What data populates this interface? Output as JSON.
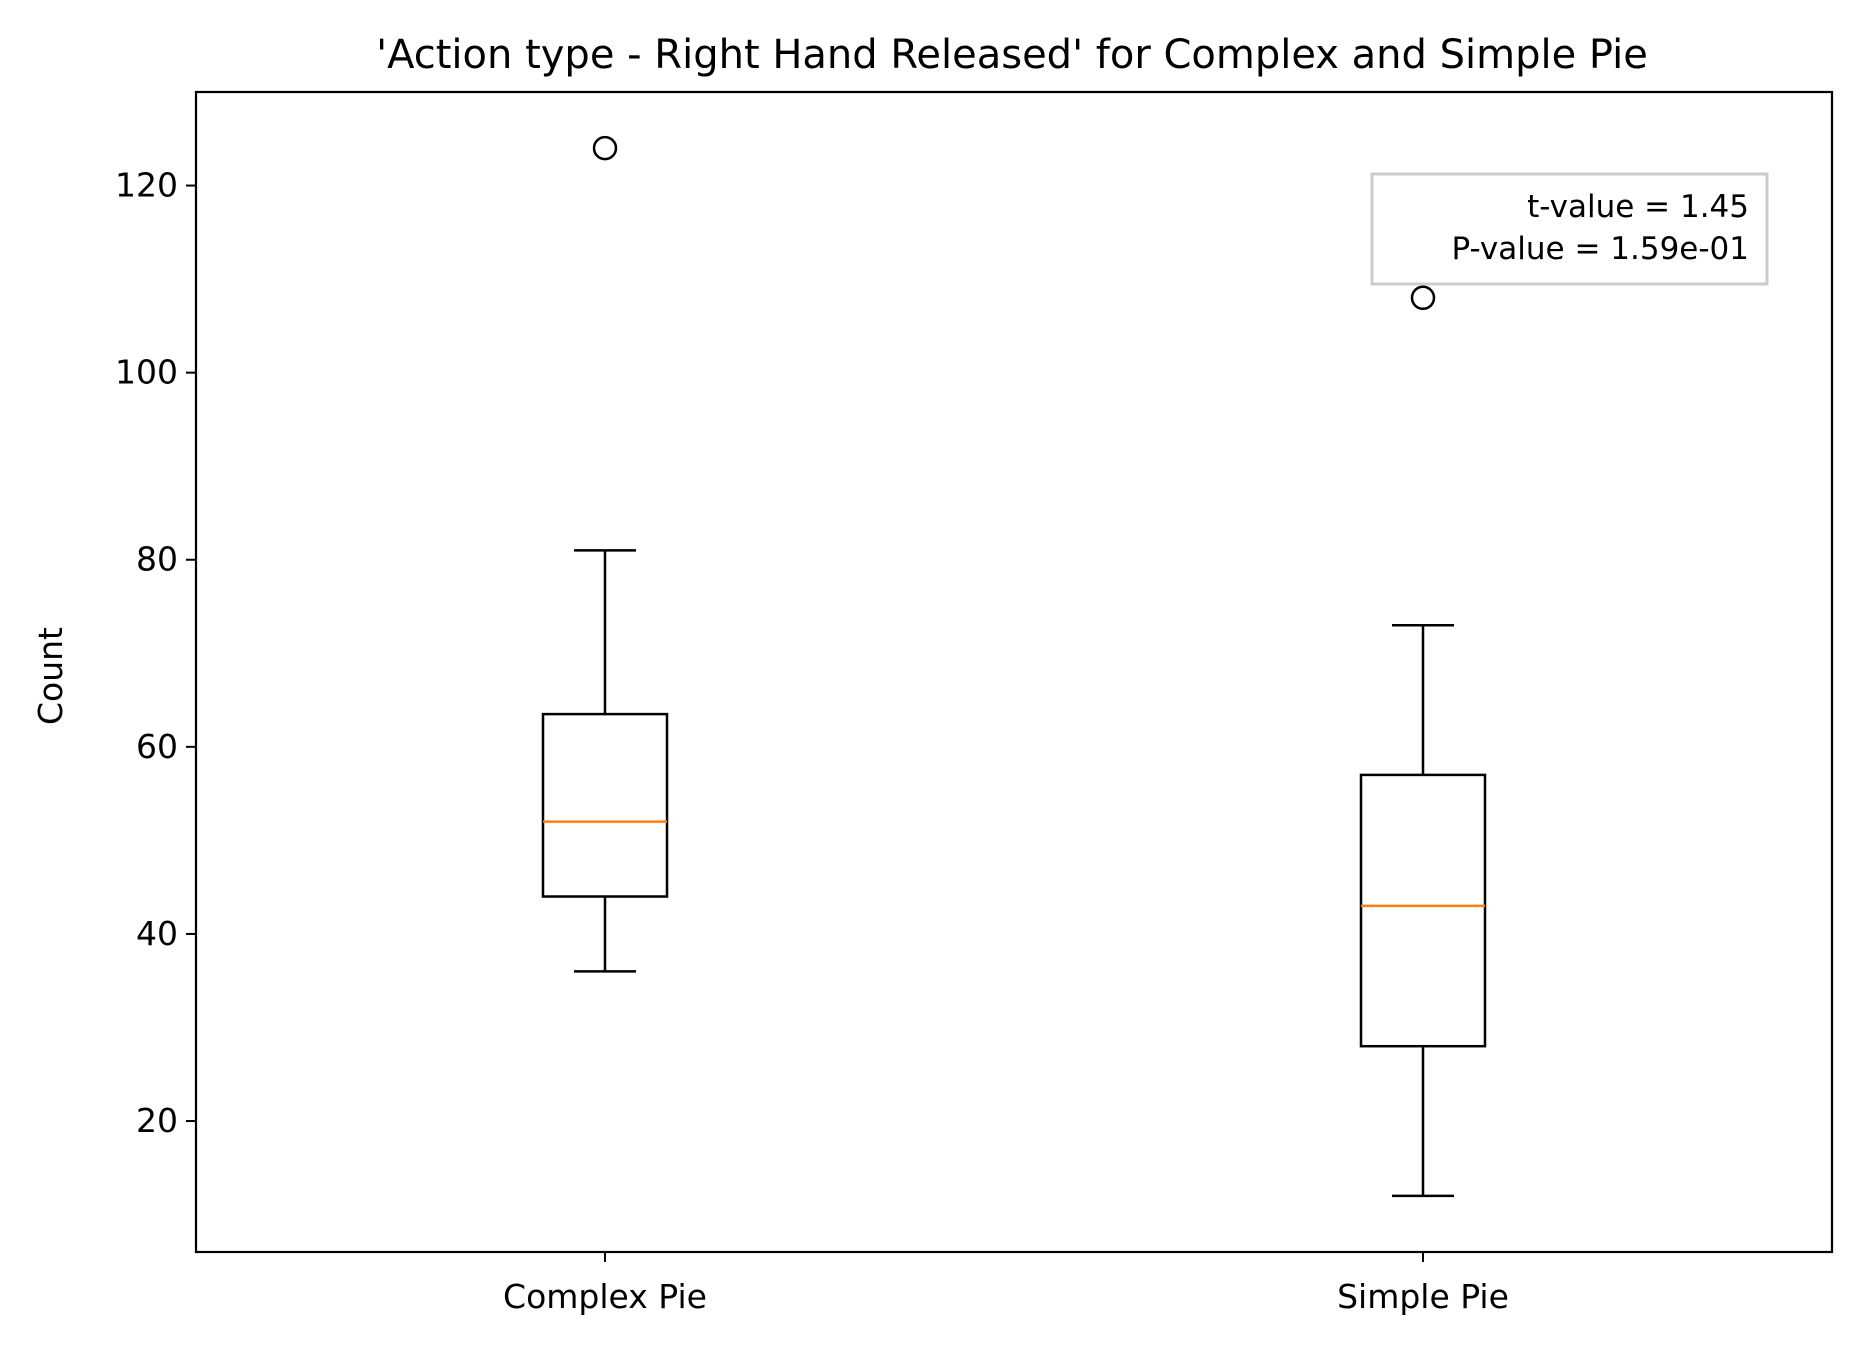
{
  "chart_data": {
    "type": "boxplot",
    "title": "'Action type - Right Hand Released' for Complex and Simple Pie",
    "xlabel": "",
    "ylabel": "Count",
    "ylim": [
      6,
      130
    ],
    "yticks": [
      20,
      40,
      60,
      80,
      100,
      120
    ],
    "grid": false,
    "categories": [
      "Complex Pie",
      "Simple Pie"
    ],
    "boxes": [
      {
        "category": "Complex Pie",
        "whisker_low": 36,
        "q1": 44,
        "median": 52,
        "q3": 63.5,
        "whisker_high": 81,
        "outliers": [
          124
        ]
      },
      {
        "category": "Simple Pie",
        "whisker_low": 12,
        "q1": 28,
        "median": 43,
        "q3": 57,
        "whisker_high": 73,
        "outliers": [
          108
        ]
      }
    ],
    "annotation": {
      "lines": [
        "t-value = 1.45",
        "P-value = 1.59e-01"
      ],
      "placement": "top-right"
    },
    "colors": {
      "box": "#000000",
      "median": "#ff7f0e",
      "annotation_border": "#cccccc"
    }
  }
}
